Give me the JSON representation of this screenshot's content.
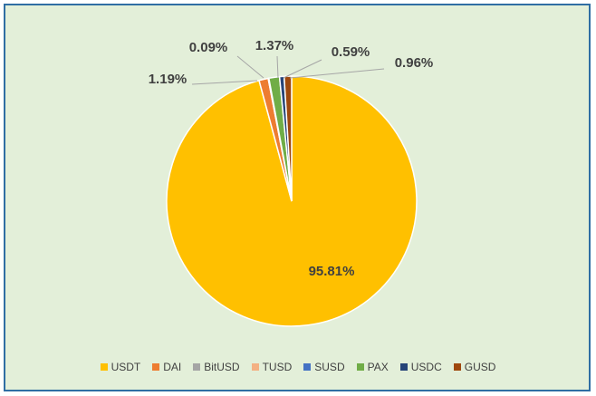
{
  "chart_data": {
    "type": "pie",
    "title": "",
    "legend_position": "bottom",
    "slices": [
      {
        "name": "USDT",
        "value": 95.81,
        "label": "95.81%",
        "color": "#FFC000"
      },
      {
        "name": "DAI",
        "value": 1.19,
        "label": "1.19%",
        "color": "#ED7D31"
      },
      {
        "name": "BitUSD",
        "value": 0.09,
        "label": "0.09%",
        "color": "#A5A5A5"
      },
      {
        "name": "TUSD",
        "value": 0.0,
        "label": "",
        "color": "#F4B183"
      },
      {
        "name": "SUSD",
        "value": 0.0,
        "label": "",
        "color": "#4472C4"
      },
      {
        "name": "PAX",
        "value": 1.37,
        "label": "1.37%",
        "color": "#70AD47"
      },
      {
        "name": "USDC",
        "value": 0.59,
        "label": "0.59%",
        "color": "#264478"
      },
      {
        "name": "GUSD",
        "value": 0.96,
        "label": "0.96%",
        "color": "#9E480E"
      }
    ]
  }
}
